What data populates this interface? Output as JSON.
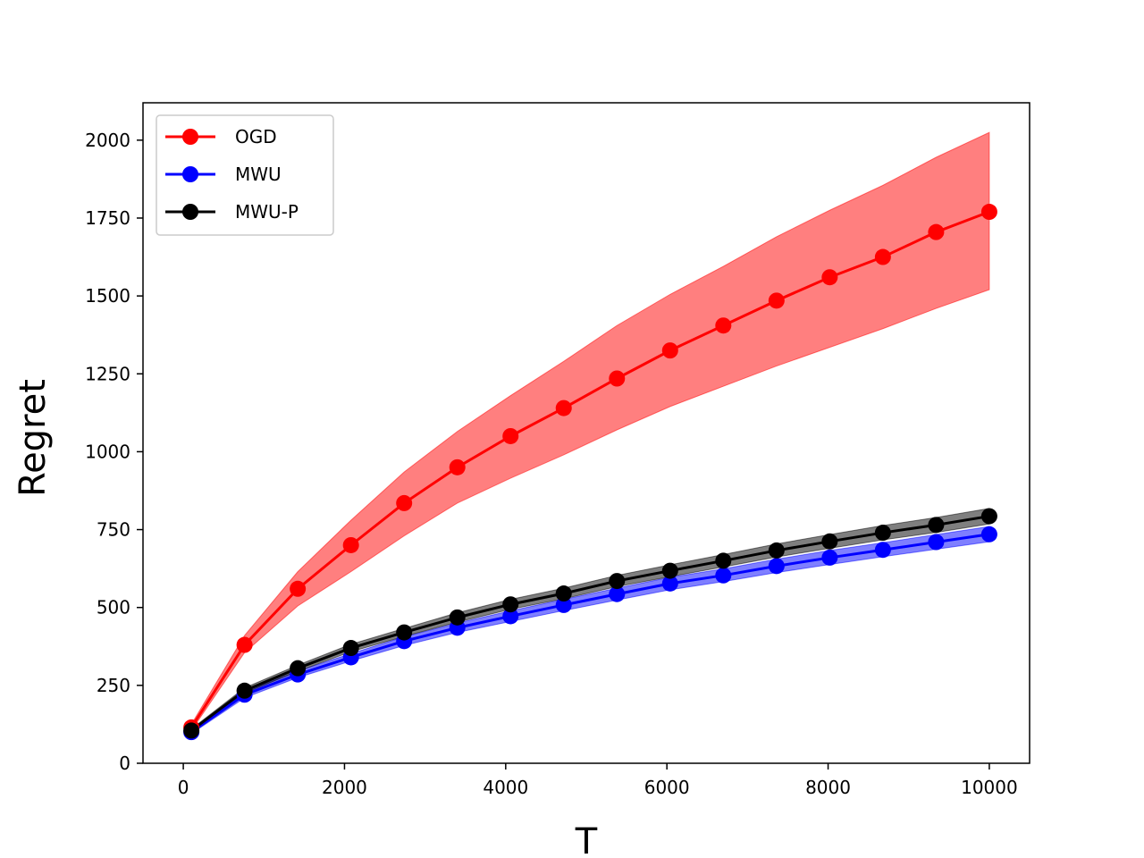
{
  "chart_data": {
    "type": "line",
    "title": "",
    "xlabel": "T",
    "ylabel": "Regret",
    "xlim": [
      -500,
      10500
    ],
    "ylim": [
      0,
      2120
    ],
    "xticks": [
      0,
      2000,
      4000,
      6000,
      8000,
      10000
    ],
    "yticks": [
      0,
      250,
      500,
      750,
      1000,
      1250,
      1500,
      1750,
      2000
    ],
    "grid": false,
    "legend_position": "upper-left",
    "x": [
      100,
      760,
      1420,
      2080,
      2740,
      3400,
      4060,
      4720,
      5380,
      6040,
      6700,
      7360,
      8020,
      8680,
      9340,
      10000
    ],
    "series": [
      {
        "name": "OGD",
        "color": "#ff0000",
        "values": [
          115,
          380,
          560,
          700,
          835,
          950,
          1050,
          1140,
          1235,
          1325,
          1405,
          1485,
          1560,
          1625,
          1705,
          1770
        ],
        "lower": [
          105,
          355,
          505,
          615,
          730,
          835,
          915,
          990,
          1070,
          1145,
          1210,
          1275,
          1335,
          1395,
          1460,
          1520
        ],
        "upper": [
          125,
          410,
          615,
          780,
          935,
          1065,
          1180,
          1290,
          1405,
          1505,
          1595,
          1690,
          1775,
          1855,
          1945,
          2025
        ]
      },
      {
        "name": "MWU",
        "color": "#0000ff",
        "values": [
          100,
          220,
          285,
          340,
          392,
          435,
          472,
          508,
          543,
          577,
          603,
          633,
          660,
          685,
          710,
          735
        ],
        "lower": [
          95,
          210,
          275,
          328,
          378,
          420,
          455,
          490,
          524,
          557,
          583,
          612,
          638,
          663,
          687,
          711
        ],
        "upper": [
          105,
          230,
          296,
          352,
          406,
          450,
          489,
          526,
          562,
          597,
          624,
          655,
          683,
          708,
          734,
          760
        ]
      },
      {
        "name": "MWU-P",
        "color": "#000000",
        "values": [
          105,
          233,
          305,
          370,
          420,
          468,
          510,
          545,
          585,
          618,
          650,
          683,
          712,
          740,
          765,
          793
        ],
        "lower": [
          100,
          225,
          295,
          358,
          407,
          453,
          494,
          528,
          567,
          599,
          630,
          662,
          690,
          717,
          741,
          768
        ],
        "upper": [
          110,
          242,
          315,
          382,
          433,
          483,
          526,
          562,
          603,
          637,
          670,
          704,
          734,
          763,
          789,
          818
        ]
      }
    ]
  }
}
